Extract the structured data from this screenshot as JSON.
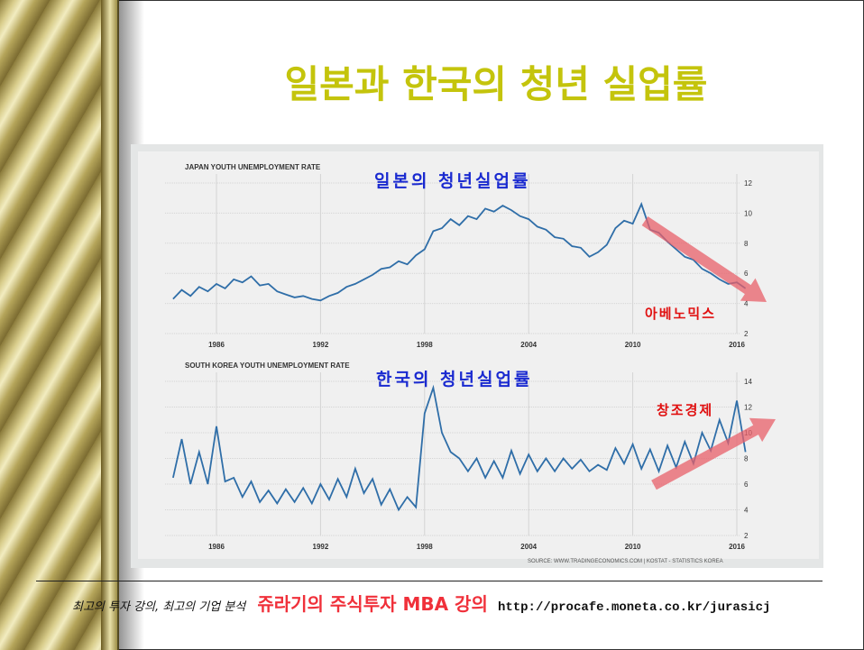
{
  "slide_title": "일본과 한국의 청년 실업률",
  "footer": {
    "tagline": "최고의 투자 강의, 최고의 기업 분석",
    "brand": "쥬라기의 주식투자 MBA 강의",
    "url": "http://procafe.moneta.co.kr/jurasicj"
  },
  "source": "SOURCE: WWW.TRADINGECONOMICS.COM | KOSTAT - STATISTICS KOREA",
  "colors": {
    "line": "#2f6ea8",
    "arrow": "#e8606a",
    "title": "#c4c40c",
    "annotation_blue": "#1a2ad0",
    "annotation_red": "#e01010"
  },
  "chart_data": [
    {
      "type": "line",
      "title": "JAPAN YOUTH UNEMPLOYMENT RATE",
      "overlay_title": "일본의 청년실업률",
      "annotation": "아베노믹스",
      "xticks": [
        1986,
        1992,
        1998,
        2004,
        2010,
        2016
      ],
      "yticks": [
        2,
        4,
        6,
        8,
        10,
        12
      ],
      "xlim": [
        1983,
        2017.5
      ],
      "ylim": [
        2,
        12
      ],
      "trend_arrow": "down",
      "x": [
        1983.5,
        1984,
        1984.5,
        1985,
        1985.5,
        1986,
        1986.5,
        1987,
        1987.5,
        1988,
        1988.5,
        1989,
        1989.5,
        1990,
        1990.5,
        1991,
        1991.5,
        1992,
        1992.5,
        1993,
        1993.5,
        1994,
        1994.5,
        1995,
        1995.5,
        1996,
        1996.5,
        1997,
        1997.5,
        1998,
        1998.5,
        1999,
        1999.5,
        2000,
        2000.5,
        2001,
        2001.5,
        2002,
        2002.5,
        2003,
        2003.5,
        2004,
        2004.5,
        2005,
        2005.5,
        2006,
        2006.5,
        2007,
        2007.5,
        2008,
        2008.5,
        2009,
        2009.5,
        2010,
        2010.5,
        2011,
        2011.5,
        2012,
        2012.5,
        2013,
        2013.5,
        2014,
        2014.5,
        2015,
        2015.5,
        2016,
        2016.5
      ],
      "values": [
        4.3,
        4.9,
        4.5,
        5.1,
        4.8,
        5.3,
        5.0,
        5.6,
        5.4,
        5.8,
        5.2,
        5.3,
        4.8,
        4.6,
        4.4,
        4.5,
        4.3,
        4.2,
        4.5,
        4.7,
        5.1,
        5.3,
        5.6,
        5.9,
        6.3,
        6.4,
        6.8,
        6.6,
        7.2,
        7.6,
        8.8,
        9.0,
        9.6,
        9.2,
        9.8,
        9.6,
        10.3,
        10.1,
        10.5,
        10.2,
        9.8,
        9.6,
        9.1,
        8.9,
        8.4,
        8.3,
        7.8,
        7.7,
        7.1,
        7.4,
        7.9,
        9.0,
        9.5,
        9.3,
        10.6,
        8.9,
        8.7,
        8.1,
        7.6,
        7.1,
        6.9,
        6.3,
        6.0,
        5.6,
        5.3,
        5.4,
        5.0
      ]
    },
    {
      "type": "line",
      "title": "SOUTH KOREA YOUTH UNEMPLOYMENT RATE",
      "overlay_title": "한국의 청년실업률",
      "annotation": "창조경제",
      "xticks": [
        1986,
        1992,
        1998,
        2004,
        2010,
        2016
      ],
      "yticks": [
        2,
        4,
        6,
        8,
        10,
        12,
        14
      ],
      "xlim": [
        1983,
        2017.5
      ],
      "ylim": [
        2,
        14
      ],
      "trend_arrow": "up",
      "x": [
        1983.5,
        1984,
        1984.5,
        1985,
        1985.5,
        1986,
        1986.5,
        1987,
        1987.5,
        1988,
        1988.5,
        1989,
        1989.5,
        1990,
        1990.5,
        1991,
        1991.5,
        1992,
        1992.5,
        1993,
        1993.5,
        1994,
        1994.5,
        1995,
        1995.5,
        1996,
        1996.5,
        1997,
        1997.5,
        1998,
        1998.5,
        1999,
        1999.5,
        2000,
        2000.5,
        2001,
        2001.5,
        2002,
        2002.5,
        2003,
        2003.5,
        2004,
        2004.5,
        2005,
        2005.5,
        2006,
        2006.5,
        2007,
        2007.5,
        2008,
        2008.5,
        2009,
        2009.5,
        2010,
        2010.5,
        2011,
        2011.5,
        2012,
        2012.5,
        2013,
        2013.5,
        2014,
        2014.5,
        2015,
        2015.5,
        2016,
        2016.5
      ],
      "values": [
        6.5,
        9.5,
        6.0,
        8.5,
        6.0,
        10.5,
        6.2,
        6.5,
        5.0,
        6.2,
        4.6,
        5.5,
        4.5,
        5.6,
        4.6,
        5.7,
        4.5,
        6.0,
        4.8,
        6.4,
        5.0,
        7.2,
        5.3,
        6.4,
        4.4,
        5.6,
        4.0,
        5.0,
        4.2,
        11.5,
        13.5,
        10.0,
        8.5,
        8.0,
        7.0,
        8.0,
        6.5,
        7.8,
        6.5,
        8.6,
        6.8,
        8.3,
        7.0,
        8.0,
        7.0,
        8.0,
        7.2,
        7.9,
        7.0,
        7.5,
        7.1,
        8.8,
        7.6,
        9.1,
        7.2,
        8.7,
        7.0,
        9.0,
        7.3,
        9.3,
        7.6,
        10.0,
        8.6,
        11.0,
        9.2,
        12.5,
        8.5
      ]
    }
  ]
}
